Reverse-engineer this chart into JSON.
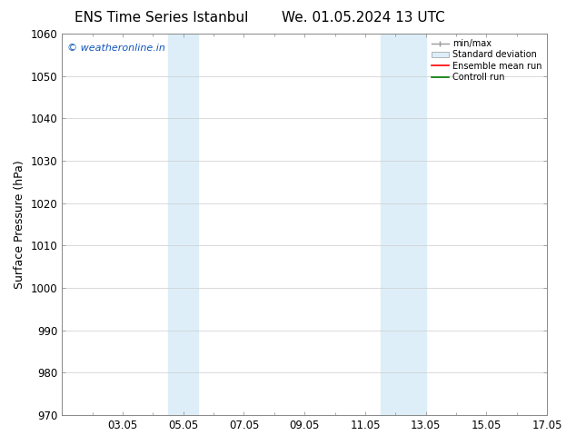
{
  "title": "ENS Time Series Istanbul",
  "title2": "We. 01.05.2024 13 UTC",
  "ylabel": "Surface Pressure (hPa)",
  "ylim": [
    970,
    1060
  ],
  "yticks": [
    970,
    980,
    990,
    1000,
    1010,
    1020,
    1030,
    1040,
    1050,
    1060
  ],
  "xlim": [
    1.0,
    17.0
  ],
  "xtick_labels": [
    "03.05",
    "05.05",
    "07.05",
    "09.05",
    "11.05",
    "13.05",
    "15.05",
    "17.05"
  ],
  "xtick_positions": [
    3.0,
    5.0,
    7.0,
    9.0,
    11.0,
    13.0,
    15.0,
    17.0
  ],
  "shaded_regions": [
    {
      "x_start": 4.5,
      "x_end": 5.5
    },
    {
      "x_start": 11.5,
      "x_end": 13.0
    }
  ],
  "shaded_color": "#ddeef8",
  "watermark_text": "© weatheronline.in",
  "watermark_color": "#1155bb",
  "legend_labels": [
    "min/max",
    "Standard deviation",
    "Ensemble mean run",
    "Controll run"
  ],
  "legend_colors": [
    "#999999",
    "#cccccc",
    "#ff0000",
    "#007700"
  ],
  "bg_color": "#ffffff",
  "grid_color": "#cccccc",
  "title_fontsize": 11,
  "tick_fontsize": 8.5,
  "ylabel_fontsize": 9,
  "watermark_fontsize": 8
}
